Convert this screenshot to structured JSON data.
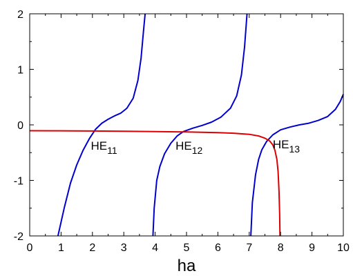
{
  "chart_data": {
    "type": "line",
    "title": "",
    "xlabel": "ha",
    "ylabel": "",
    "xlim": [
      0,
      10
    ],
    "ylim": [
      -2,
      2
    ],
    "x_ticks": [
      "0",
      "1",
      "2",
      "3",
      "4",
      "5",
      "6",
      "7",
      "8",
      "9",
      "10"
    ],
    "y_ticks": [
      "2",
      "1",
      "0",
      "-1",
      "-2"
    ],
    "grid": false,
    "series": [
      {
        "color": "#0000cc",
        "segments": [
          [
            [
              0.9,
              -2.0
            ],
            [
              1.1,
              -1.5
            ],
            [
              1.3,
              -1.05
            ],
            [
              1.5,
              -0.72
            ],
            [
              1.7,
              -0.46
            ],
            [
              1.9,
              -0.25
            ],
            [
              2.1,
              -0.08
            ],
            [
              2.3,
              0.03
            ],
            [
              2.5,
              0.1
            ],
            [
              2.7,
              0.16
            ],
            [
              2.9,
              0.21
            ],
            [
              3.1,
              0.3
            ],
            [
              3.3,
              0.48
            ],
            [
              3.45,
              0.8
            ],
            [
              3.55,
              1.2
            ],
            [
              3.63,
              1.7
            ],
            [
              3.68,
              2.0
            ]
          ],
          [
            [
              3.93,
              -2.0
            ],
            [
              3.97,
              -1.5
            ],
            [
              4.05,
              -1.0
            ],
            [
              4.15,
              -0.75
            ],
            [
              4.3,
              -0.52
            ],
            [
              4.5,
              -0.33
            ],
            [
              4.7,
              -0.2
            ],
            [
              4.9,
              -0.12
            ],
            [
              5.2,
              -0.06
            ],
            [
              5.5,
              -0.01
            ],
            [
              5.8,
              0.05
            ],
            [
              6.1,
              0.14
            ],
            [
              6.4,
              0.3
            ],
            [
              6.6,
              0.52
            ],
            [
              6.75,
              0.9
            ],
            [
              6.85,
              1.4
            ],
            [
              6.93,
              2.0
            ]
          ],
          [
            [
              7.05,
              -2.0
            ],
            [
              7.1,
              -1.4
            ],
            [
              7.2,
              -0.9
            ],
            [
              7.3,
              -0.62
            ],
            [
              7.4,
              -0.45
            ],
            [
              7.55,
              -0.3
            ],
            [
              7.75,
              -0.18
            ],
            [
              8.0,
              -0.09
            ],
            [
              8.3,
              -0.04
            ],
            [
              8.6,
              0.0
            ],
            [
              8.9,
              0.03
            ],
            [
              9.2,
              0.08
            ],
            [
              9.5,
              0.15
            ],
            [
              9.75,
              0.28
            ],
            [
              9.9,
              0.42
            ],
            [
              10.0,
              0.55
            ]
          ]
        ]
      },
      {
        "color": "#dd0000",
        "segments": [
          [
            [
              0.0,
              -0.105
            ],
            [
              1.0,
              -0.107
            ],
            [
              2.0,
              -0.11
            ],
            [
              3.0,
              -0.114
            ],
            [
              4.0,
              -0.12
            ],
            [
              5.0,
              -0.128
            ],
            [
              6.0,
              -0.14
            ],
            [
              6.5,
              -0.15
            ],
            [
              7.0,
              -0.17
            ],
            [
              7.3,
              -0.2
            ],
            [
              7.5,
              -0.24
            ],
            [
              7.65,
              -0.29
            ],
            [
              7.75,
              -0.36
            ],
            [
              7.82,
              -0.46
            ],
            [
              7.88,
              -0.62
            ],
            [
              7.92,
              -0.85
            ],
            [
              7.95,
              -1.2
            ],
            [
              7.97,
              -1.6
            ],
            [
              7.98,
              -2.0
            ]
          ]
        ]
      }
    ],
    "annotations": [
      {
        "base": "HE",
        "sub": "11",
        "x": 1.95,
        "y": -0.45
      },
      {
        "base": "HE",
        "sub": "12",
        "x": 4.65,
        "y": -0.45
      },
      {
        "base": "HE",
        "sub": "13",
        "x": 7.75,
        "y": -0.42
      }
    ]
  }
}
